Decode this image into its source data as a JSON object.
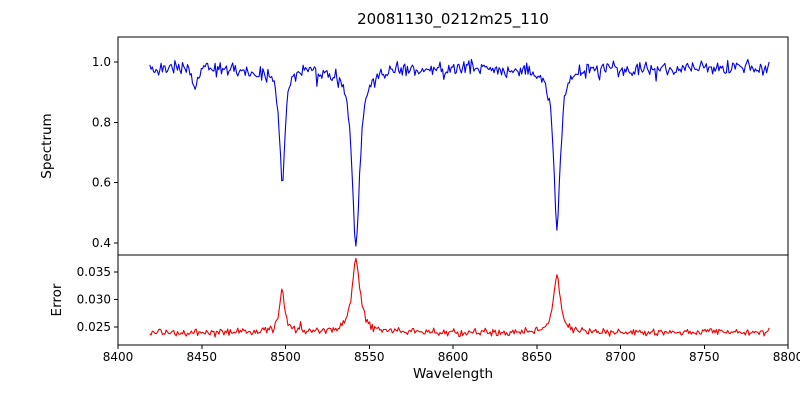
{
  "figure": {
    "background_color": "#ffffff",
    "axes_color": "#000000"
  },
  "chart_data": {
    "type": "line",
    "title": "20081130_0212m25_110",
    "xlabel": "Wavelength",
    "xlim": [
      8400,
      8800
    ],
    "x_ticks": {
      "values": [
        8400,
        8450,
        8500,
        8550,
        8600,
        8650,
        8700,
        8750,
        8800
      ],
      "labels": [
        "8400",
        "8450",
        "8500",
        "8550",
        "8600",
        "8650",
        "8700",
        "8750",
        "8800"
      ]
    },
    "x_data_range": [
      8419,
      8789
    ],
    "sample_step": 0.75,
    "grid": false,
    "legend": "none",
    "subplots": [
      {
        "name": "spectrum",
        "ylabel": "Spectrum",
        "ylim": [
          0.36,
          1.083
        ],
        "y_ticks": {
          "values": [
            0.4,
            0.6,
            0.8,
            1.0
          ],
          "labels": [
            "0.4",
            "0.6",
            "0.8",
            "1.0"
          ]
        },
        "line_color": "#0000ee",
        "continuum_level": 0.98,
        "noise_sigma": 0.013,
        "absorption_lines": [
          {
            "center": 8446.0,
            "min_value": 0.9,
            "width": 1.4
          },
          {
            "center": 8498.0,
            "min_value": 0.59,
            "width": 1.9
          },
          {
            "center": 8542.1,
            "min_value": 0.38,
            "width": 2.7
          },
          {
            "center": 8662.1,
            "min_value": 0.46,
            "width": 2.3
          }
        ]
      },
      {
        "name": "error",
        "ylabel": "Error",
        "ylim": [
          0.0217,
          0.0381
        ],
        "y_ticks": {
          "values": [
            0.025,
            0.03,
            0.035
          ],
          "labels": [
            "0.025",
            "0.030",
            "0.035"
          ]
        },
        "line_color": "#ee0000",
        "baseline_level": 0.024,
        "noise_sigma": 0.00035,
        "peaks": [
          {
            "center": 8498.0,
            "peak_value": 0.0315,
            "width": 1.9
          },
          {
            "center": 8542.1,
            "peak_value": 0.0375,
            "width": 2.7
          },
          {
            "center": 8662.1,
            "peak_value": 0.0345,
            "width": 2.3
          }
        ]
      }
    ]
  }
}
